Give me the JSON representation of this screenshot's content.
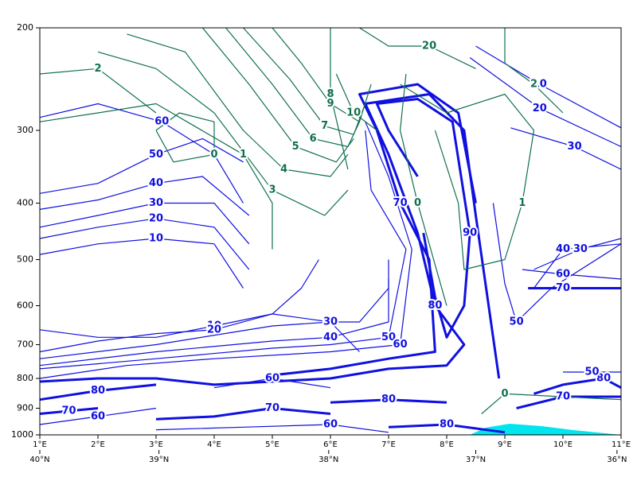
{
  "chart_data": {
    "type": "contour",
    "xlim": [
      1,
      11
    ],
    "ylim": [
      1000,
      200
    ],
    "yscale": "log",
    "yticks": [
      200,
      300,
      400,
      500,
      600,
      700,
      800,
      900,
      1000
    ],
    "xticks": [
      {
        "value": 1,
        "label": "1°E"
      },
      {
        "value": 2,
        "label": "2°E"
      },
      {
        "value": 3,
        "label": "3°E"
      },
      {
        "value": 4,
        "label": "4°E"
      },
      {
        "value": 5,
        "label": "5°E"
      },
      {
        "value": 6,
        "label": "6°E"
      },
      {
        "value": 7,
        "label": "7°E"
      },
      {
        "value": 8,
        "label": "8°E"
      },
      {
        "value": 9,
        "label": "9°E"
      },
      {
        "value": 10,
        "label": "10°E"
      },
      {
        "value": 11,
        "label": "11°E"
      }
    ],
    "x2ticks": [
      {
        "value": 1,
        "label": "40°N"
      },
      {
        "value": 3.05,
        "label": "39°N"
      },
      {
        "value": 5.97,
        "label": "38°N"
      },
      {
        "value": 8.5,
        "label": "37°N"
      },
      {
        "value": 10.93,
        "label": "36°N"
      }
    ],
    "thick_from": 70,
    "series": [
      {
        "color": "#1010e0",
        "level": 10,
        "x": [
          8.5,
          9.6,
          11
        ],
        "y": [
          215,
          250,
          297
        ]
      },
      {
        "color": "#1010e0",
        "level": 20,
        "x": [
          8.4,
          9.6,
          11
        ],
        "y": [
          225,
          275,
          320
        ]
      },
      {
        "color": "#1010e0",
        "level": 30,
        "x": [
          9.1,
          10.2,
          11
        ],
        "y": [
          297,
          320,
          350
        ]
      },
      {
        "color": "#1010e0",
        "level": 60,
        "x": [
          1,
          2,
          3.1,
          4,
          4.5
        ],
        "y": [
          285,
          270,
          290,
          330,
          400
        ]
      },
      {
        "color": "#1010e0",
        "level": 50,
        "x": [
          1,
          2,
          3,
          3.8,
          4.5
        ],
        "y": [
          385,
          370,
          330,
          310,
          340
        ]
      },
      {
        "color": "#1010e0",
        "level": 40,
        "x": [
          1,
          2,
          3,
          3.8,
          4.6
        ],
        "y": [
          410,
          395,
          370,
          360,
          420
        ]
      },
      {
        "color": "#1010e0",
        "level": 30,
        "x": [
          1,
          2,
          3,
          4,
          4.6
        ],
        "y": [
          440,
          420,
          400,
          400,
          470
        ]
      },
      {
        "color": "#1010e0",
        "level": 20,
        "x": [
          1,
          2,
          3,
          4,
          4.6
        ],
        "y": [
          460,
          440,
          425,
          440,
          520
        ]
      },
      {
        "color": "#1010e0",
        "level": 10,
        "x": [
          1,
          2,
          3,
          4,
          4.5
        ],
        "y": [
          490,
          470,
          460,
          470,
          560
        ]
      },
      {
        "color": "#1010e0",
        "level": 10,
        "x": [
          1,
          2,
          3,
          4,
          5,
          6,
          6.5
        ],
        "y": [
          660,
          680,
          680,
          650,
          620,
          640,
          720
        ]
      },
      {
        "color": "#1010e0",
        "level": 20,
        "x": [
          1,
          2,
          3,
          4,
          5,
          5.5,
          5.8
        ],
        "y": [
          720,
          690,
          670,
          660,
          620,
          560,
          500
        ]
      },
      {
        "color": "#1010e0",
        "level": 30,
        "x": [
          1,
          3,
          5,
          6,
          6.5,
          7,
          7
        ],
        "y": [
          740,
          700,
          650,
          640,
          640,
          560,
          500
        ]
      },
      {
        "color": "#1010e0",
        "level": 40,
        "x": [
          1,
          3,
          5,
          6,
          7,
          7
        ],
        "y": [
          760,
          720,
          690,
          680,
          640,
          540
        ]
      },
      {
        "color": "#1010e0",
        "level": 50,
        "x": [
          1,
          3,
          5,
          6,
          7,
          7.3,
          6.7,
          6.6
        ],
        "y": [
          770,
          740,
          710,
          700,
          680,
          480,
          380,
          300
        ]
      },
      {
        "color": "#1010e0",
        "level": 60,
        "x": [
          1,
          2.5,
          4,
          6,
          7.2,
          7.4,
          7,
          6.6
        ],
        "y": [
          800,
          760,
          740,
          720,
          700,
          480,
          360,
          290
        ]
      },
      {
        "color": "#1010e0",
        "level": 70,
        "x": [
          5,
          6,
          7,
          7.8,
          7.7,
          7.2,
          6.8,
          6.5,
          7.5,
          8.2,
          8.5
        ],
        "y": [
          790,
          770,
          740,
          720,
          500,
          400,
          300,
          260,
          250,
          280,
          400
        ]
      },
      {
        "color": "#1010e0",
        "level": 80,
        "x": [
          1,
          2,
          3,
          4,
          6,
          7,
          8,
          8.3,
          7.8,
          7.5,
          7,
          6.6,
          7.7,
          8.3,
          8.5,
          8.9
        ],
        "y": [
          810,
          800,
          800,
          820,
          800,
          770,
          760,
          700,
          600,
          450,
          330,
          270,
          260,
          300,
          420,
          800
        ]
      },
      {
        "color": "#1010e0",
        "level": 90,
        "x": [
          7.5,
          7,
          6.8,
          7.5,
          8.1,
          8.4,
          8.3,
          8,
          7.8,
          7.6
        ],
        "y": [
          360,
          300,
          270,
          265,
          290,
          450,
          600,
          680,
          580,
          450
        ]
      },
      {
        "color": "#1010e0",
        "level": 70,
        "x": [
          9.4,
          10,
          11
        ],
        "y": [
          560,
          560,
          560
        ]
      },
      {
        "color": "#1010e0",
        "level": 60,
        "x": [
          9.3,
          10,
          11
        ],
        "y": [
          520,
          530,
          540
        ]
      },
      {
        "color": "#1010e0",
        "level": 50,
        "x": [
          8.8,
          9,
          9.2,
          9.8,
          11
        ],
        "y": [
          400,
          550,
          640,
          560,
          470
        ]
      },
      {
        "color": "#1010e0",
        "level": 40,
        "x": [
          9.5,
          10,
          11
        ],
        "y": [
          560,
          480,
          470
        ]
      },
      {
        "color": "#1010e0",
        "level": 30,
        "x": [
          9.5,
          10.3,
          11
        ],
        "y": [
          520,
          480,
          460
        ]
      },
      {
        "color": "#1010e0",
        "level": 80,
        "x": [
          9.5,
          10,
          10.7,
          11
        ],
        "y": [
          850,
          820,
          800,
          830
        ]
      },
      {
        "color": "#1010e0",
        "level": 70,
        "x": [
          9.2,
          10,
          11
        ],
        "y": [
          900,
          860,
          860
        ]
      },
      {
        "color": "#1010e0",
        "level": 50,
        "x": [
          10,
          11
        ],
        "y": [
          780,
          780
        ]
      },
      {
        "color": "#1010e0",
        "level": 80,
        "x": [
          1,
          2,
          3
        ],
        "y": [
          870,
          840,
          820
        ]
      },
      {
        "color": "#1010e0",
        "level": 70,
        "x": [
          1,
          2
        ],
        "y": [
          920,
          900
        ]
      },
      {
        "color": "#1010e0",
        "level": 60,
        "x": [
          1,
          2,
          3
        ],
        "y": [
          960,
          930,
          900
        ]
      },
      {
        "color": "#1010e0",
        "level": 70,
        "x": [
          3,
          4,
          5,
          6
        ],
        "y": [
          940,
          930,
          900,
          920
        ]
      },
      {
        "color": "#1010e0",
        "level": 60,
        "x": [
          3,
          4.5,
          6,
          7
        ],
        "y": [
          980,
          970,
          960,
          990
        ]
      },
      {
        "color": "#1010e0",
        "level": 60,
        "x": [
          4,
          5,
          6
        ],
        "y": [
          830,
          800,
          830
        ]
      },
      {
        "color": "#1010e0",
        "level": 80,
        "x": [
          6,
          7,
          8
        ],
        "y": [
          880,
          870,
          880
        ]
      },
      {
        "color": "#1010e0",
        "level": 80,
        "x": [
          7,
          8,
          9
        ],
        "y": [
          970,
          960,
          990
        ]
      },
      {
        "color": "#107050",
        "level": 0,
        "x": [
          3,
          3.4,
          4,
          4,
          3.3,
          3
        ],
        "y": [
          300,
          280,
          290,
          330,
          340,
          300
        ]
      },
      {
        "color": "#107050",
        "level": 1,
        "x": [
          1,
          2,
          3,
          4.5,
          5,
          5
        ],
        "y": [
          290,
          280,
          270,
          330,
          400,
          480
        ]
      },
      {
        "color": "#107050",
        "level": 2,
        "x": [
          1,
          2,
          3
        ],
        "y": [
          240,
          235,
          280
        ]
      },
      {
        "color": "#107050",
        "level": 3,
        "x": [
          2,
          3,
          4,
          5,
          5.9,
          6.3
        ],
        "y": [
          220,
          235,
          280,
          380,
          420,
          380
        ]
      },
      {
        "color": "#107050",
        "level": 4,
        "x": [
          2.5,
          3.5,
          4.5,
          5.2,
          6,
          6.3
        ],
        "y": [
          205,
          220,
          300,
          350,
          360,
          330
        ]
      },
      {
        "color": "#107050",
        "level": 5,
        "x": [
          3.8,
          4.6,
          5.4,
          6.1,
          6.4
        ],
        "y": [
          200,
          250,
          320,
          340,
          310
        ]
      },
      {
        "color": "#107050",
        "level": 6,
        "x": [
          4.2,
          5,
          5.7,
          6.3,
          6.5
        ],
        "y": [
          200,
          250,
          310,
          320,
          290
        ]
      },
      {
        "color": "#107050",
        "level": 7,
        "x": [
          4.5,
          5.3,
          5.9,
          6.4,
          6.6
        ],
        "y": [
          200,
          245,
          295,
          305,
          270
        ]
      },
      {
        "color": "#107050",
        "level": 8,
        "x": [
          6,
          6,
          6.3
        ],
        "y": [
          200,
          260,
          350
        ]
      },
      {
        "color": "#107050",
        "level": 9,
        "x": [
          5,
          5.5,
          6,
          6.5,
          6.7
        ],
        "y": [
          200,
          230,
          270,
          290,
          250
        ]
      },
      {
        "color": "#107050",
        "level": 10,
        "x": [
          6.1,
          6.4,
          6.8
        ],
        "y": [
          240,
          280,
          300
        ]
      },
      {
        "color": "#107050",
        "level": 20,
        "x": [
          6.5,
          7,
          7.7,
          8.5
        ],
        "y": [
          200,
          215,
          215,
          235
        ]
      },
      {
        "color": "#107050",
        "level": 0,
        "x": [
          7.3,
          7.2,
          7.5,
          8
        ],
        "y": [
          240,
          300,
          400,
          600
        ]
      },
      {
        "color": "#107050",
        "level": 0,
        "x": [
          8.6,
          9,
          11
        ],
        "y": [
          920,
          850,
          870
        ]
      },
      {
        "color": "#107050",
        "level": 1,
        "x": [
          7.2,
          8,
          9,
          9.5,
          9.3,
          9,
          8.3,
          8.2,
          7.8
        ],
        "y": [
          250,
          280,
          260,
          300,
          400,
          500,
          520,
          400,
          300
        ]
      },
      {
        "color": "#107050",
        "level": 2,
        "x": [
          9,
          9,
          9.5,
          10
        ],
        "y": [
          200,
          230,
          250,
          280
        ]
      }
    ]
  }
}
